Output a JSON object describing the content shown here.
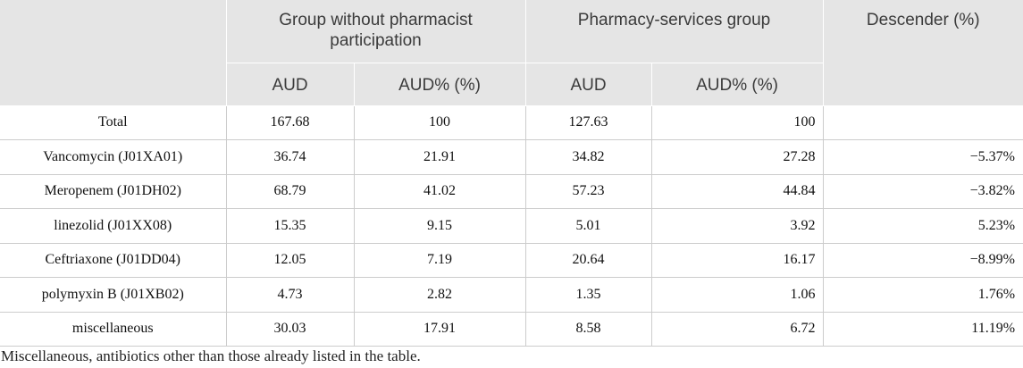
{
  "table": {
    "header_groups": {
      "group_without": "Group without pharmacist participation",
      "group_with": "Pharmacy-services group",
      "descender": "Descender (%)"
    },
    "subheaders": [
      "AUD",
      "AUD% (%)",
      "AUD",
      "AUD% (%)"
    ],
    "rows": [
      {
        "drug": "Total",
        "without_aud": "167.68",
        "without_aud_pct": "100",
        "with_aud": "127.63",
        "with_aud_pct": "100"
      },
      {
        "drug": "Vancomycin (J01XA01)",
        "without_aud": "36.74",
        "without_aud_pct": "21.91",
        "with_aud": "34.82",
        "with_aud_pct": "27.28",
        "descender": "−5.37%"
      },
      {
        "drug": "Meropenem (J01DH02)",
        "without_aud": "68.79",
        "without_aud_pct": "41.02",
        "with_aud": "57.23",
        "with_aud_pct": "44.84",
        "descender": "−3.82%"
      },
      {
        "drug": "linezolid (J01XX08)",
        "without_aud": "15.35",
        "without_aud_pct": "9.15",
        "with_aud": "5.01",
        "with_aud_pct": "3.92",
        "descender": "5.23%"
      },
      {
        "drug": "Ceftriaxone (J01DD04)",
        "without_aud": "12.05",
        "without_aud_pct": "7.19",
        "with_aud": "20.64",
        "with_aud_pct": "16.17",
        "descender": "−8.99%"
      },
      {
        "drug": "polymyxin B (J01XB02)",
        "without_aud": "4.73",
        "without_aud_pct": "2.82",
        "with_aud": "1.35",
        "with_aud_pct": "1.06",
        "descender": "1.76%"
      },
      {
        "drug": "miscellaneous",
        "without_aud": "30.03",
        "without_aud_pct": "17.91",
        "with_aud": "8.58",
        "with_aud_pct": "6.72",
        "descender": "11.19%"
      }
    ]
  },
  "footnote": "Miscellaneous, antibiotics other than those already listed in the table."
}
